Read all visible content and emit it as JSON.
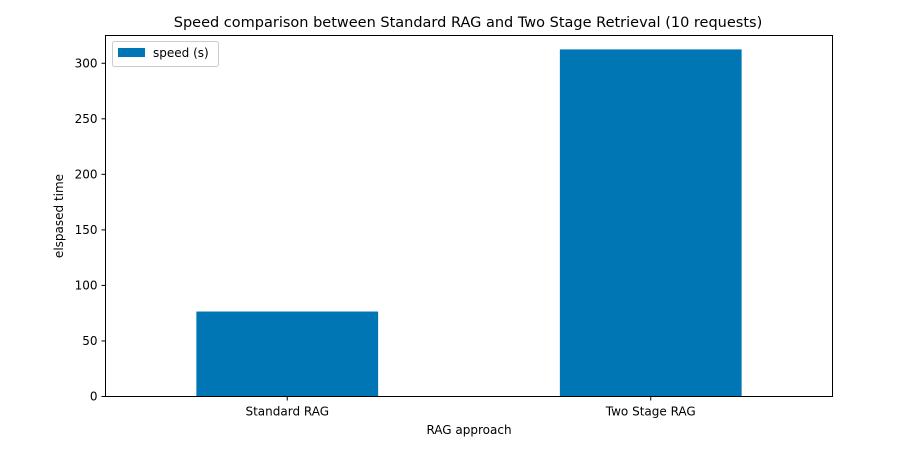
{
  "chart_data": {
    "type": "bar",
    "title": "Speed comparison between Standard RAG and Two Stage Retrieval (10 requests)",
    "xlabel": "RAG approach",
    "ylabel": "elspased time",
    "categories": [
      "Standard RAG",
      "Two Stage RAG"
    ],
    "series": [
      {
        "name": "speed (s)",
        "color": "#0077b4",
        "values": [
          76.5,
          312.5
        ]
      }
    ],
    "ylim": [
      0,
      325
    ],
    "yticks": [
      0,
      50,
      100,
      150,
      200,
      250,
      300
    ],
    "grid": false,
    "legend_position": "top-left"
  }
}
